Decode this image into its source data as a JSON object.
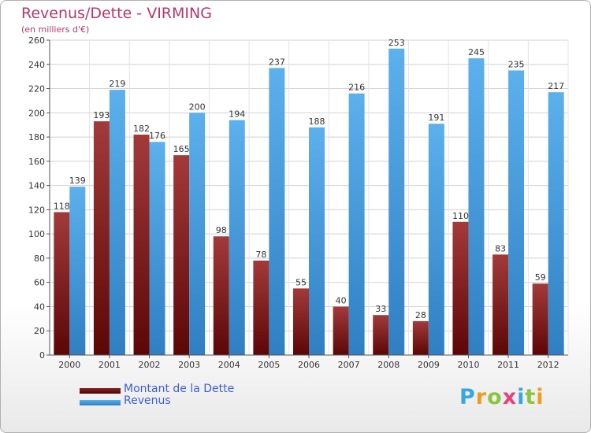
{
  "header": {
    "title": "Revenus/Dette - VIRMING",
    "subtitle": "(en milliers d'€)"
  },
  "legend": [
    {
      "label": "Montant de la Dette",
      "color": "#6d0f0f"
    },
    {
      "label": "Revenus",
      "color": "#4a9de0"
    }
  ],
  "brand": {
    "letters": [
      "P",
      "r",
      "o",
      "x",
      "i",
      "t",
      "i"
    ],
    "colors": [
      "#3aa6e0",
      "#f29a1e",
      "#8cc43f",
      "#e73f7c",
      "#3aa6e0",
      "#8cc43f",
      "#f29a1e"
    ]
  },
  "chart_data": {
    "type": "bar",
    "title": "Revenus/Dette - VIRMING",
    "categories": [
      "2000",
      "2001",
      "2002",
      "2003",
      "2004",
      "2005",
      "2006",
      "2007",
      "2008",
      "2009",
      "2010",
      "2011",
      "2012"
    ],
    "series": [
      {
        "name": "Montant de la Dette",
        "color": "#7a1b1b",
        "values": [
          118,
          193,
          182,
          165,
          98,
          78,
          55,
          40,
          33,
          28,
          110,
          83,
          59
        ]
      },
      {
        "name": "Revenus",
        "color": "#4a9de0",
        "values": [
          139,
          219,
          176,
          200,
          194,
          237,
          188,
          216,
          253,
          191,
          245,
          235,
          217
        ]
      }
    ],
    "ylim": [
      0,
      260
    ],
    "yticks": [
      0,
      20,
      40,
      60,
      80,
      100,
      120,
      140,
      160,
      180,
      200,
      220,
      240,
      260
    ],
    "grid": true,
    "legend_position": "bottom-left"
  }
}
